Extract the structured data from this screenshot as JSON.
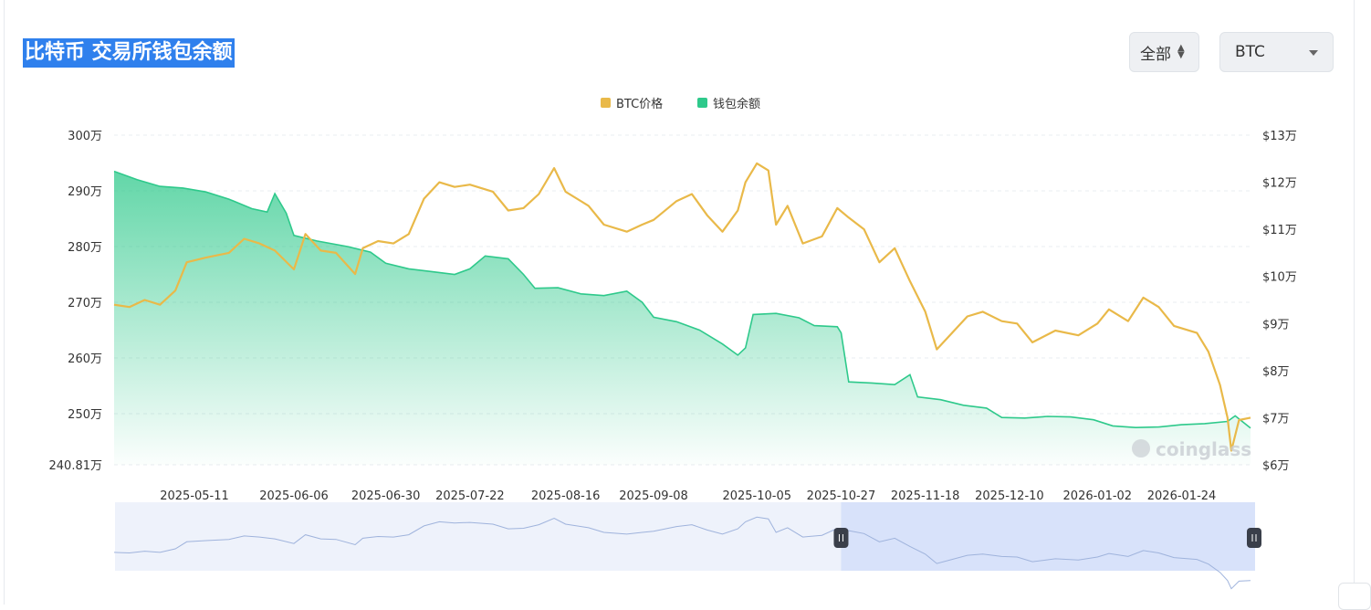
{
  "header": {
    "title": "比特币 交易所钱包余额",
    "range_select": {
      "value": "全部"
    },
    "coin_select": {
      "value": "BTC"
    }
  },
  "watermark": "coinglass",
  "colors": {
    "price": "#e9b949",
    "balance": "#26c281",
    "accent": "#2f80ed"
  },
  "chart_data": {
    "type": "line",
    "legend": [
      {
        "name": "BTC价格",
        "color": "#e9b949"
      },
      {
        "name": "钱包余额",
        "color": "#2ec98b"
      }
    ],
    "legend_position": "top-center",
    "grid": true,
    "x_tick_labels": [
      "2025-05-11",
      "2025-06-06",
      "2025-06-30",
      "2025-07-22",
      "2025-08-16",
      "2025-09-08",
      "2025-10-05",
      "2025-10-27",
      "2025-11-18",
      "2025-12-10",
      "2026-01-02",
      "2026-01-24"
    ],
    "y_left": {
      "range": [
        2408100,
        3000000
      ],
      "ticks": [
        3000000,
        2900000,
        2800000,
        2700000,
        2600000,
        2500000,
        2408100
      ],
      "tick_labels": [
        "300万",
        "290万",
        "280万",
        "270万",
        "260万",
        "250万",
        "240.81万"
      ]
    },
    "y_right": {
      "range": [
        60000,
        130000
      ],
      "ticks": [
        130000,
        120000,
        110000,
        100000,
        90000,
        80000,
        70000,
        60000
      ],
      "tick_labels": [
        "$13万",
        "$12万",
        "$11万",
        "$10万",
        "$9万",
        "$8万",
        "$7万",
        "$6万"
      ]
    },
    "series": [
      {
        "name": "钱包余额",
        "axis": "left",
        "type": "area",
        "points": [
          [
            "2025-04-20",
            2935000
          ],
          [
            "2025-04-26",
            2920000
          ],
          [
            "2025-05-02",
            2908000
          ],
          [
            "2025-05-08",
            2905000
          ],
          [
            "2025-05-14",
            2898000
          ],
          [
            "2025-05-20",
            2885000
          ],
          [
            "2025-05-26",
            2868000
          ],
          [
            "2025-05-30",
            2862000
          ],
          [
            "2025-06-01",
            2895000
          ],
          [
            "2025-06-04",
            2860000
          ],
          [
            "2025-06-06",
            2820000
          ],
          [
            "2025-06-12",
            2810000
          ],
          [
            "2025-06-20",
            2800000
          ],
          [
            "2025-06-26",
            2790000
          ],
          [
            "2025-06-30",
            2770000
          ],
          [
            "2025-07-06",
            2760000
          ],
          [
            "2025-07-12",
            2755000
          ],
          [
            "2025-07-18",
            2750000
          ],
          [
            "2025-07-22",
            2760000
          ],
          [
            "2025-07-26",
            2783000
          ],
          [
            "2025-08-01",
            2778000
          ],
          [
            "2025-08-05",
            2750000
          ],
          [
            "2025-08-08",
            2725000
          ],
          [
            "2025-08-14",
            2726000
          ],
          [
            "2025-08-20",
            2715000
          ],
          [
            "2025-08-26",
            2712000
          ],
          [
            "2025-09-01",
            2720000
          ],
          [
            "2025-09-05",
            2700000
          ],
          [
            "2025-09-08",
            2673000
          ],
          [
            "2025-09-14",
            2665000
          ],
          [
            "2025-09-20",
            2650000
          ],
          [
            "2025-09-26",
            2625000
          ],
          [
            "2025-09-30",
            2605000
          ],
          [
            "2025-10-02",
            2618000
          ],
          [
            "2025-10-04",
            2678000
          ],
          [
            "2025-10-10",
            2680000
          ],
          [
            "2025-10-16",
            2672000
          ],
          [
            "2025-10-20",
            2658000
          ],
          [
            "2025-10-26",
            2656000
          ],
          [
            "2025-10-27",
            2645000
          ],
          [
            "2025-10-29",
            2557000
          ],
          [
            "2025-11-04",
            2555000
          ],
          [
            "2025-11-10",
            2552000
          ],
          [
            "2025-11-14",
            2570000
          ],
          [
            "2025-11-16",
            2530000
          ],
          [
            "2025-11-22",
            2525000
          ],
          [
            "2025-11-28",
            2515000
          ],
          [
            "2025-12-04",
            2510000
          ],
          [
            "2025-12-08",
            2493000
          ],
          [
            "2025-12-14",
            2492000
          ],
          [
            "2025-12-20",
            2495000
          ],
          [
            "2025-12-26",
            2494000
          ],
          [
            "2026-01-01",
            2489000
          ],
          [
            "2026-01-06",
            2478000
          ],
          [
            "2026-01-12",
            2475000
          ],
          [
            "2026-01-18",
            2476000
          ],
          [
            "2026-01-24",
            2480000
          ],
          [
            "2026-01-30",
            2482000
          ],
          [
            "2026-02-05",
            2486000
          ],
          [
            "2026-02-07",
            2496000
          ],
          [
            "2026-02-11",
            2474000
          ]
        ]
      },
      {
        "name": "BTC价格",
        "axis": "right",
        "type": "line",
        "points": [
          [
            "2025-04-20",
            94000
          ],
          [
            "2025-04-24",
            93500
          ],
          [
            "2025-04-28",
            95000
          ],
          [
            "2025-05-02",
            94000
          ],
          [
            "2025-05-06",
            97000
          ],
          [
            "2025-05-09",
            103000
          ],
          [
            "2025-05-14",
            104000
          ],
          [
            "2025-05-20",
            105000
          ],
          [
            "2025-05-24",
            108000
          ],
          [
            "2025-05-28",
            107000
          ],
          [
            "2025-06-01",
            105500
          ],
          [
            "2025-06-06",
            101500
          ],
          [
            "2025-06-09",
            109000
          ],
          [
            "2025-06-13",
            105500
          ],
          [
            "2025-06-17",
            105000
          ],
          [
            "2025-06-22",
            100500
          ],
          [
            "2025-06-24",
            106000
          ],
          [
            "2025-06-28",
            107500
          ],
          [
            "2025-07-02",
            107000
          ],
          [
            "2025-07-06",
            109000
          ],
          [
            "2025-07-10",
            116500
          ],
          [
            "2025-07-14",
            120000
          ],
          [
            "2025-07-18",
            119000
          ],
          [
            "2025-07-22",
            119500
          ],
          [
            "2025-07-28",
            118000
          ],
          [
            "2025-08-01",
            114000
          ],
          [
            "2025-08-05",
            114500
          ],
          [
            "2025-08-09",
            117500
          ],
          [
            "2025-08-13",
            123000
          ],
          [
            "2025-08-16",
            118000
          ],
          [
            "2025-08-22",
            115000
          ],
          [
            "2025-08-26",
            111000
          ],
          [
            "2025-09-01",
            109500
          ],
          [
            "2025-09-05",
            111000
          ],
          [
            "2025-09-08",
            112000
          ],
          [
            "2025-09-14",
            116000
          ],
          [
            "2025-09-18",
            117500
          ],
          [
            "2025-09-22",
            113000
          ],
          [
            "2025-09-26",
            109500
          ],
          [
            "2025-09-30",
            114000
          ],
          [
            "2025-10-02",
            120000
          ],
          [
            "2025-10-05",
            124000
          ],
          [
            "2025-10-08",
            122500
          ],
          [
            "2025-10-10",
            111000
          ],
          [
            "2025-10-13",
            115000
          ],
          [
            "2025-10-17",
            107000
          ],
          [
            "2025-10-22",
            108500
          ],
          [
            "2025-10-26",
            114500
          ],
          [
            "2025-10-29",
            112500
          ],
          [
            "2025-11-02",
            110000
          ],
          [
            "2025-11-06",
            103000
          ],
          [
            "2025-11-10",
            106000
          ],
          [
            "2025-11-14",
            99000
          ],
          [
            "2025-11-18",
            92500
          ],
          [
            "2025-11-21",
            84500
          ],
          [
            "2025-11-25",
            88000
          ],
          [
            "2025-11-29",
            91500
          ],
          [
            "2025-12-03",
            92500
          ],
          [
            "2025-12-08",
            90500
          ],
          [
            "2025-12-12",
            90000
          ],
          [
            "2025-12-16",
            86000
          ],
          [
            "2025-12-22",
            88500
          ],
          [
            "2025-12-28",
            87500
          ],
          [
            "2026-01-02",
            90000
          ],
          [
            "2026-01-05",
            93000
          ],
          [
            "2026-01-10",
            90500
          ],
          [
            "2026-01-14",
            95500
          ],
          [
            "2026-01-18",
            93500
          ],
          [
            "2026-01-22",
            89500
          ],
          [
            "2026-01-28",
            88000
          ],
          [
            "2026-01-31",
            84000
          ],
          [
            "2026-02-03",
            77000
          ],
          [
            "2026-02-05",
            70000
          ],
          [
            "2026-02-06",
            63000
          ],
          [
            "2026-02-08",
            69500
          ],
          [
            "2026-02-11",
            70000
          ]
        ]
      }
    ],
    "navigator": {
      "selected_from": "2025-10-27",
      "selected_to": "2026-02-11"
    }
  }
}
